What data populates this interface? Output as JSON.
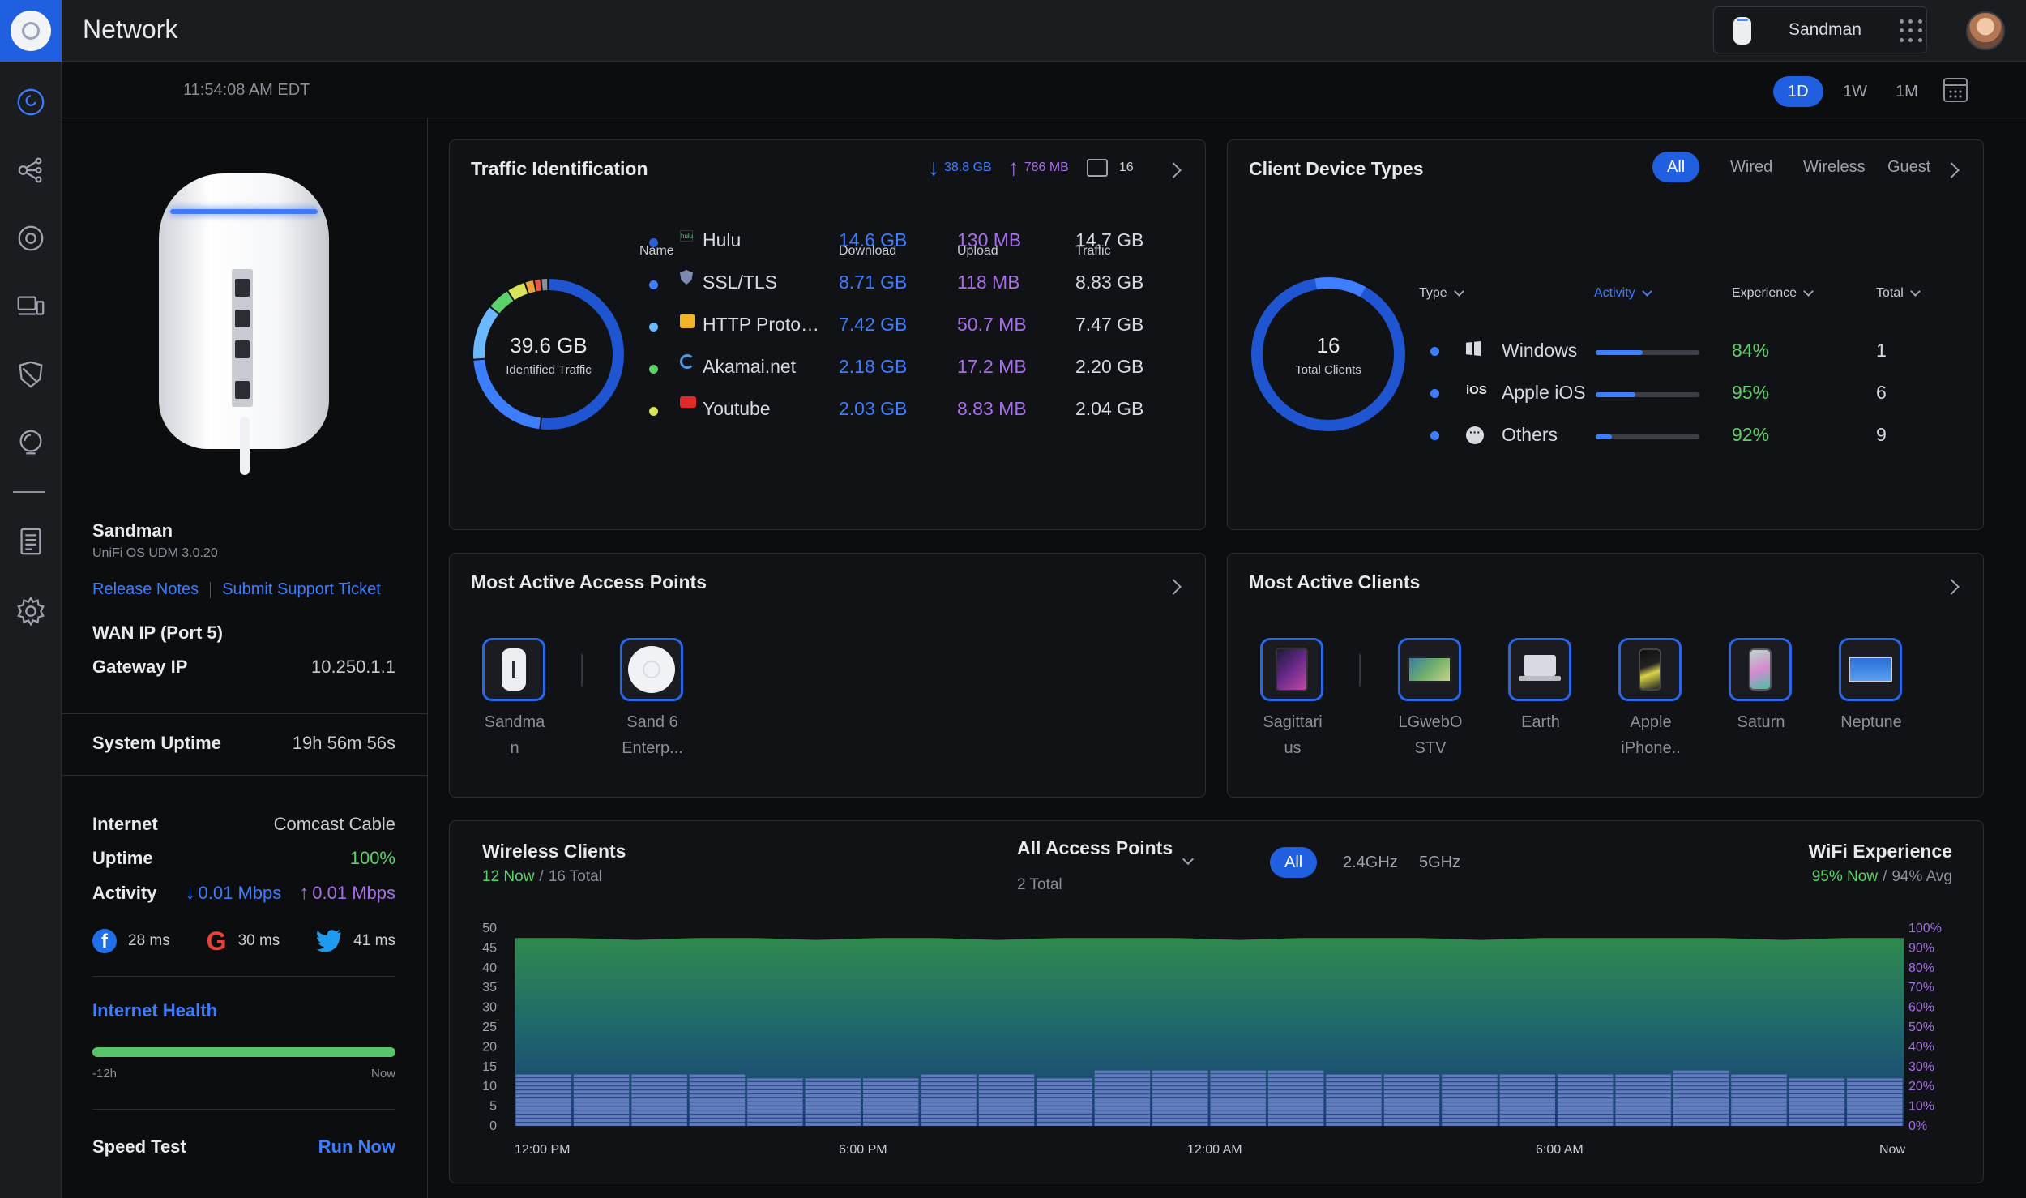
{
  "header": {
    "title": "Network",
    "device_name": "Sandman"
  },
  "subbar": {
    "time": "11:54:08 AM EDT",
    "ranges": [
      "1D",
      "1W",
      "1M"
    ],
    "active_range": "1D"
  },
  "device": {
    "name": "Sandman",
    "os": "UniFi OS UDM 3.0.20",
    "release_notes": "Release Notes",
    "support_ticket": "Submit Support Ticket",
    "wan_ip_label": "WAN IP (Port 5)",
    "gateway_ip_label": "Gateway IP",
    "gateway_ip": "10.250.1.1",
    "uptime_label": "System Uptime",
    "uptime": "19h 56m 56s",
    "internet_label": "Internet",
    "internet": "Comcast Cable",
    "uptime2_label": "Uptime",
    "uptime2": "100%",
    "activity_label": "Activity",
    "activity_down": "0.01 Mbps",
    "activity_up": "0.01 Mbps",
    "latency": [
      {
        "icon": "facebook-icon",
        "ms": "28 ms"
      },
      {
        "icon": "google-icon",
        "ms": "30 ms"
      },
      {
        "icon": "twitter-icon",
        "ms": "41 ms"
      }
    ],
    "health_label": "Internet Health",
    "health_start": "-12h",
    "health_end": "Now",
    "speedtest_label": "Speed Test",
    "speedtest_action": "Run Now"
  },
  "traffic": {
    "title": "Traffic Identification",
    "total_down": "38.8 GB",
    "total_up": "786 MB",
    "devices": "16",
    "donut_value": "39.6 GB",
    "donut_label": "Identified Traffic",
    "headers": {
      "name": "Name",
      "download": "Download",
      "upload": "Upload",
      "traffic": "Traffic"
    },
    "rows": [
      {
        "name": "Hulu",
        "download": "14.6 GB",
        "upload": "130 MB",
        "traffic": "14.7 GB",
        "dot": "#2a5fd8",
        "icon": "hulu-icon"
      },
      {
        "name": "SSL/TLS",
        "download": "8.71 GB",
        "upload": "118 MB",
        "traffic": "8.83 GB",
        "dot": "#3d7dff",
        "icon": "shield-icon"
      },
      {
        "name": "HTTP Proto…",
        "download": "7.42 GB",
        "upload": "50.7 MB",
        "traffic": "7.47 GB",
        "dot": "#6ab8ff",
        "icon": "lock-icon"
      },
      {
        "name": "Akamai.net",
        "download": "2.18 GB",
        "upload": "17.2 MB",
        "traffic": "2.20 GB",
        "dot": "#5dd26a",
        "icon": "akamai-icon"
      },
      {
        "name": "Youtube",
        "download": "2.03 GB",
        "upload": "8.83 MB",
        "traffic": "2.04 GB",
        "dot": "#d7e35a",
        "icon": "youtube-icon"
      }
    ]
  },
  "clients": {
    "title": "Client Device Types",
    "filters": [
      "All",
      "Wired",
      "Wireless",
      "Guest"
    ],
    "active_filter": "All",
    "donut_value": "16",
    "donut_label": "Total Clients",
    "headers": {
      "type": "Type",
      "activity": "Activity",
      "experience": "Experience",
      "total": "Total"
    },
    "rows": [
      {
        "type": "Windows",
        "activity": 0.45,
        "experience": "84%",
        "total": "1",
        "icon": "windows-icon"
      },
      {
        "type": "Apple iOS",
        "activity": 0.38,
        "experience": "95%",
        "total": "6",
        "icon": "ios-icon",
        "icon_text": "iOS"
      },
      {
        "type": "Others",
        "activity": 0.16,
        "experience": "92%",
        "total": "9",
        "icon": "more-icon"
      }
    ]
  },
  "access_points": {
    "title": "Most Active Access Points",
    "items": [
      {
        "label": "Sandma\nn"
      },
      {
        "label": "Sand 6\nEnterp..."
      }
    ]
  },
  "active_clients": {
    "title": "Most Active Clients",
    "items": [
      {
        "label": "Sagittari\nus"
      },
      {
        "label": "LGwebO\nSTV"
      },
      {
        "label": "Earth"
      },
      {
        "label": "Apple\niPhone.."
      },
      {
        "label": "Saturn"
      },
      {
        "label": "Neptune"
      }
    ]
  },
  "wireless": {
    "title": "Wireless Clients",
    "now": "12 Now",
    "total": "16 Total",
    "ap_select": "All Access Points",
    "ap_total": "2 Total",
    "bands": [
      "All",
      "2.4GHz",
      "5GHz"
    ],
    "active_band": "All",
    "wifi_title": "WiFi Experience",
    "wifi_now": "95% Now",
    "wifi_avg": "94% Avg",
    "chart_data": {
      "type": "area",
      "x_labels": [
        "12:00 PM",
        "6:00 PM",
        "12:00 AM",
        "6:00 AM",
        "Now"
      ],
      "y_ticks": [
        50,
        45,
        40,
        35,
        30,
        25,
        20,
        15,
        10,
        5,
        0
      ],
      "y2_ticks": [
        "100%",
        "90%",
        "80%",
        "70%",
        "60%",
        "50%",
        "40%",
        "30%",
        "20%",
        "10%",
        "0%"
      ],
      "ylim": [
        0,
        50
      ],
      "series": [
        {
          "values": [
            95,
            95,
            94,
            95,
            95,
            94,
            95,
            95,
            94,
            95,
            95,
            95,
            94,
            95,
            95,
            95,
            94,
            95,
            95,
            95,
            95,
            94,
            95,
            95
          ]
        },
        {
          "values": [
            13,
            13,
            13,
            13,
            12,
            12,
            12,
            13,
            13,
            12,
            14,
            14,
            14,
            14,
            13,
            13,
            13,
            13,
            13,
            13,
            14,
            13,
            12,
            12
          ]
        }
      ]
    }
  }
}
